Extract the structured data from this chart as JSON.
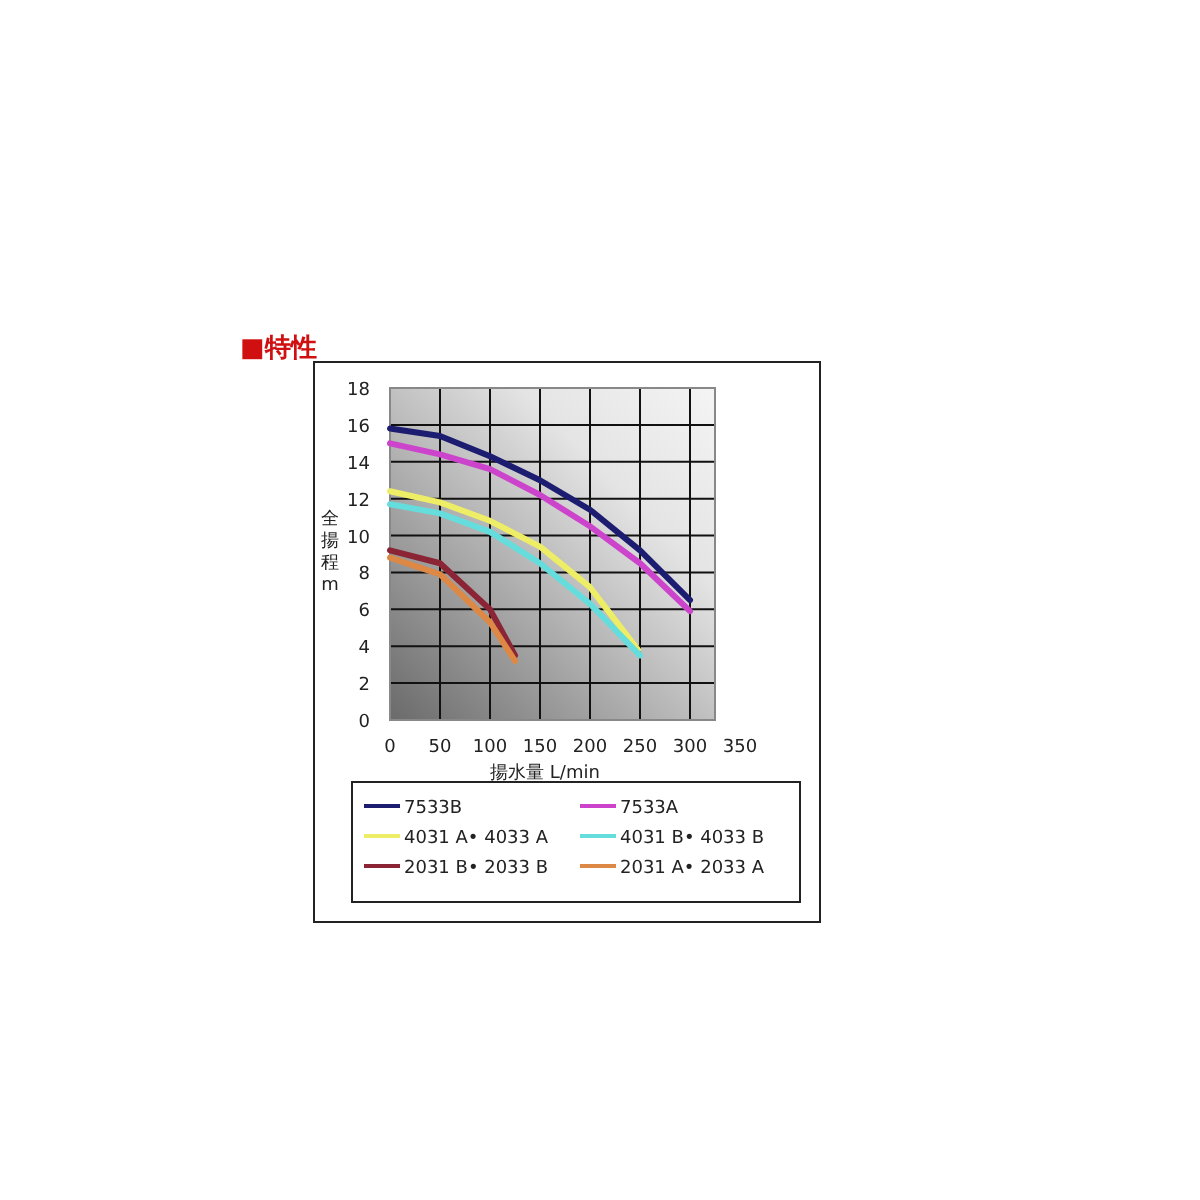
{
  "chart_data": {
    "type": "line",
    "title": "■特性",
    "xlabel": "揚水量 L/min",
    "ylabel": "全揚程m",
    "xlim": [
      0,
      350
    ],
    "ylim": [
      0,
      18
    ],
    "xticks": [
      0,
      50,
      100,
      150,
      200,
      250,
      300,
      350
    ],
    "yticks": [
      0,
      2,
      4,
      6,
      8,
      10,
      12,
      14,
      16,
      18
    ],
    "grid": true,
    "legend": "bottom",
    "marker": "none",
    "line_style": "solid",
    "series": [
      {
        "name": "7533B",
        "color": "#1c1c70",
        "x": [
          0,
          50,
          100,
          150,
          200,
          250,
          300
        ],
        "values": [
          15.8,
          15.4,
          14.3,
          13.0,
          11.4,
          9.2,
          6.5
        ]
      },
      {
        "name": "7533A",
        "color": "#cc44cc",
        "x": [
          0,
          50,
          100,
          150,
          200,
          250,
          300
        ],
        "values": [
          15.0,
          14.4,
          13.6,
          12.2,
          10.5,
          8.5,
          5.9
        ]
      },
      {
        "name": "4031 A• 4033 A",
        "color": "#eeee66",
        "x": [
          0,
          50,
          100,
          150,
          200,
          248
        ],
        "values": [
          12.4,
          11.8,
          10.8,
          9.4,
          7.2,
          3.8
        ]
      },
      {
        "name": "4031 B• 4033 B",
        "color": "#66dddd",
        "x": [
          0,
          50,
          100,
          150,
          200,
          250
        ],
        "values": [
          11.7,
          11.2,
          10.2,
          8.5,
          6.3,
          3.5
        ]
      },
      {
        "name": "2031 B• 2033 B",
        "color": "#8b2535",
        "x": [
          0,
          50,
          100,
          125
        ],
        "values": [
          9.2,
          8.5,
          6.0,
          3.5
        ]
      },
      {
        "name": "2031 A• 2033 A",
        "color": "#dd8844",
        "x": [
          0,
          50,
          100,
          125
        ],
        "values": [
          8.8,
          7.9,
          5.3,
          3.2
        ]
      }
    ]
  }
}
